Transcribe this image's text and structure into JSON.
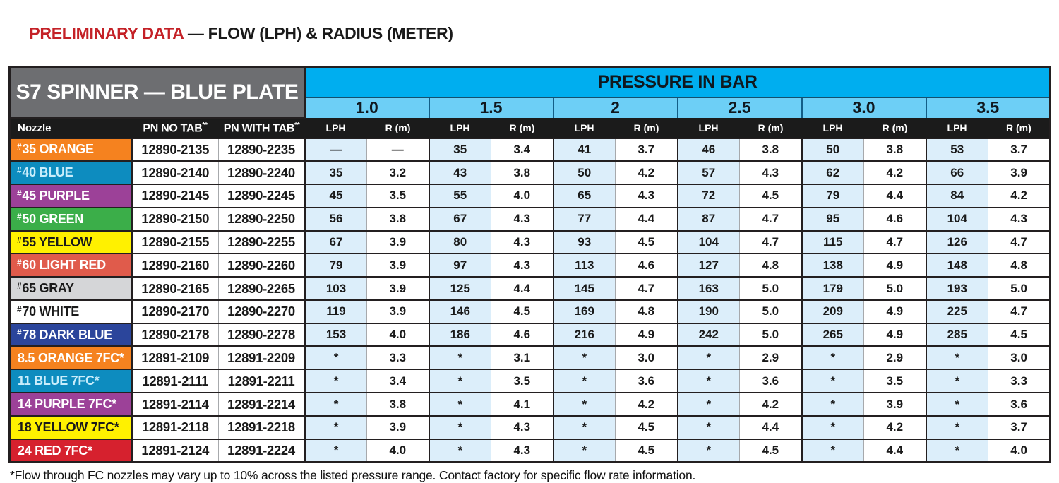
{
  "title": {
    "highlight": "PRELIMINARY DATA",
    "rest": " — FLOW (LPH) & RADIUS (METER)"
  },
  "table": {
    "product_header": "S7 SPINNER — BLUE PLATE",
    "pressure_header": "PRESSURE IN BAR",
    "pressures": [
      "1.0",
      "1.5",
      "2",
      "2.5",
      "3.0",
      "3.5"
    ],
    "columns": {
      "nozzle": "Nozzle",
      "pn_no_tab": "PN NO TAB",
      "pn_with_tab": "PN WITH TAB",
      "pn_sup": "**",
      "lph": "LPH",
      "r": "R (m)"
    },
    "colors": {
      "pressure_band": "#00AEEF",
      "pressure_values_band": "#6DCFF6",
      "product_header_bg": "#6D6E71",
      "header_row_bg": "#1B1B1B",
      "lph_cell_bg": "#DCEEFA",
      "r_cell_bg": "#FFFFFF",
      "title_red": "#C42127",
      "grid": "#231F20"
    },
    "rows": [
      {
        "hash": "#",
        "label": "35 ORANGE",
        "bg": "#F5821F",
        "fg": "#FFFFFF",
        "pn_no_tab": "12890-2135",
        "pn_with_tab": "12890-2235",
        "values": [
          "—",
          "—",
          "35",
          "3.4",
          "41",
          "3.7",
          "46",
          "3.8",
          "50",
          "3.8",
          "53",
          "3.7"
        ]
      },
      {
        "hash": "#",
        "label": "40 BLUE",
        "bg": "#0D8CBF",
        "fg": "#C9EDFB",
        "pn_no_tab": "12890-2140",
        "pn_with_tab": "12890-2240",
        "values": [
          "35",
          "3.2",
          "43",
          "3.8",
          "50",
          "4.2",
          "57",
          "4.3",
          "62",
          "4.2",
          "66",
          "3.9"
        ]
      },
      {
        "hash": "#",
        "label": "45 PURPLE",
        "bg": "#9C4198",
        "fg": "#FFFFFF",
        "pn_no_tab": "12890-2145",
        "pn_with_tab": "12890-2245",
        "values": [
          "45",
          "3.5",
          "55",
          "4.0",
          "65",
          "4.3",
          "72",
          "4.5",
          "79",
          "4.4",
          "84",
          "4.2"
        ]
      },
      {
        "hash": "#",
        "label": "50 GREEN",
        "bg": "#3BAE49",
        "fg": "#FFFFFF",
        "pn_no_tab": "12890-2150",
        "pn_with_tab": "12890-2250",
        "values": [
          "56",
          "3.8",
          "67",
          "4.3",
          "77",
          "4.4",
          "87",
          "4.7",
          "95",
          "4.6",
          "104",
          "4.3"
        ]
      },
      {
        "hash": "#",
        "label": "55 YELLOW",
        "bg": "#FFF100",
        "fg": "#1A1A1A",
        "pn_no_tab": "12890-2155",
        "pn_with_tab": "12890-2255",
        "values": [
          "67",
          "3.9",
          "80",
          "4.3",
          "93",
          "4.5",
          "104",
          "4.7",
          "115",
          "4.7",
          "126",
          "4.7"
        ]
      },
      {
        "hash": "#",
        "label": "60 LIGHT RED",
        "bg": "#E05B4B",
        "fg": "#FFFFFF",
        "pn_no_tab": "12890-2160",
        "pn_with_tab": "12890-2260",
        "values": [
          "79",
          "3.9",
          "97",
          "4.3",
          "113",
          "4.6",
          "127",
          "4.8",
          "138",
          "4.9",
          "148",
          "4.8"
        ]
      },
      {
        "hash": "#",
        "label": "65 GRAY",
        "bg": "#D5D6D8",
        "fg": "#1A1A1A",
        "pn_no_tab": "12890-2165",
        "pn_with_tab": "12890-2265",
        "values": [
          "103",
          "3.9",
          "125",
          "4.4",
          "145",
          "4.7",
          "163",
          "5.0",
          "179",
          "5.0",
          "193",
          "5.0"
        ]
      },
      {
        "hash": "#",
        "label": "70 WHITE",
        "bg": "#FFFFFF",
        "fg": "#1A1A1A",
        "pn_no_tab": "12890-2170",
        "pn_with_tab": "12890-2270",
        "values": [
          "119",
          "3.9",
          "146",
          "4.5",
          "169",
          "4.8",
          "190",
          "5.0",
          "209",
          "4.9",
          "225",
          "4.7"
        ]
      },
      {
        "hash": "#",
        "label": "78 DARK BLUE",
        "bg": "#2B459B",
        "fg": "#FFFFFF",
        "pn_no_tab": "12890-2178",
        "pn_with_tab": "12890-2278",
        "values": [
          "153",
          "4.0",
          "186",
          "4.6",
          "216",
          "4.9",
          "242",
          "5.0",
          "265",
          "4.9",
          "285",
          "4.5"
        ]
      },
      {
        "hash": "",
        "label": "8.5 ORANGE 7FC*",
        "bg": "#F5821F",
        "fg": "#FFFFFF",
        "section_start": true,
        "pn_no_tab": "12891-2109",
        "pn_with_tab": "12891-2209",
        "values": [
          "*",
          "3.3",
          "*",
          "3.1",
          "*",
          "3.0",
          "*",
          "2.9",
          "*",
          "2.9",
          "*",
          "3.0"
        ]
      },
      {
        "hash": "",
        "label": "11 BLUE 7FC*",
        "bg": "#0D8CBF",
        "fg": "#C9EDFB",
        "pn_no_tab": "12891-2111",
        "pn_with_tab": "12891-2211",
        "values": [
          "*",
          "3.4",
          "*",
          "3.5",
          "*",
          "3.6",
          "*",
          "3.6",
          "*",
          "3.5",
          "*",
          "3.3"
        ]
      },
      {
        "hash": "",
        "label": "14 PURPLE 7FC*",
        "bg": "#9C4198",
        "fg": "#FFFFFF",
        "pn_no_tab": "12891-2114",
        "pn_with_tab": "12891-2214",
        "values": [
          "*",
          "3.8",
          "*",
          "4.1",
          "*",
          "4.2",
          "*",
          "4.2",
          "*",
          "3.9",
          "*",
          "3.6"
        ]
      },
      {
        "hash": "",
        "label": "18 YELLOW 7FC*",
        "bg": "#FFF100",
        "fg": "#1A1A1A",
        "pn_no_tab": "12891-2118",
        "pn_with_tab": "12891-2218",
        "values": [
          "*",
          "3.9",
          "*",
          "4.3",
          "*",
          "4.5",
          "*",
          "4.4",
          "*",
          "4.2",
          "*",
          "3.7"
        ]
      },
      {
        "hash": "",
        "label": "24 RED 7FC*",
        "bg": "#D6212E",
        "fg": "#FFFFFF",
        "pn_no_tab": "12891-2124",
        "pn_with_tab": "12891-2224",
        "values": [
          "*",
          "4.0",
          "*",
          "4.3",
          "*",
          "4.5",
          "*",
          "4.5",
          "*",
          "4.4",
          "*",
          "4.0"
        ]
      }
    ]
  },
  "footnote": "*Flow through FC nozzles may vary up to 10% across the listed pressure range. Contact factory for specific flow rate information."
}
